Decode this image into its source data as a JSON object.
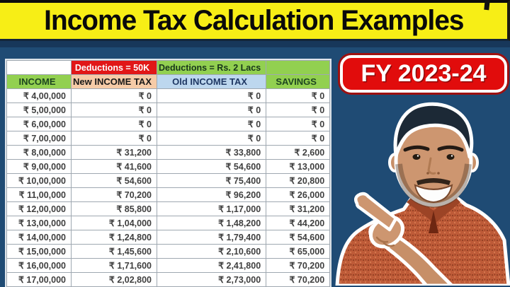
{
  "banner": {
    "title": "Income Tax Calculation Examples"
  },
  "badge": {
    "label": "FY 2023-24"
  },
  "colors": {
    "background": "#1F4B74",
    "banner_yellow": "#F7EE16",
    "badge_red": "#E10C0C",
    "deduction_red": "#E11717",
    "header_green": "#92D050",
    "header_peach": "#F6CBA7",
    "header_blue": "#BDD7EE"
  },
  "chart_data": {
    "type": "table",
    "title": "Income Tax Calculation Examples",
    "fiscal_year": "FY 2023-24",
    "group_headers": [
      "",
      "Deductions = 50K",
      "Deductions = Rs. 2 Lacs",
      ""
    ],
    "columns": [
      "INCOME",
      "New INCOME TAX",
      "Old INCOME TAX",
      "SAVINGS"
    ],
    "rows": [
      [
        "₹ 4,00,000",
        "₹ 0",
        "₹ 0",
        "₹ 0"
      ],
      [
        "₹ 5,00,000",
        "₹ 0",
        "₹ 0",
        "₹ 0"
      ],
      [
        "₹ 6,00,000",
        "₹ 0",
        "₹ 0",
        "₹ 0"
      ],
      [
        "₹ 7,00,000",
        "₹ 0",
        "₹ 0",
        "₹ 0"
      ],
      [
        "₹ 8,00,000",
        "₹ 31,200",
        "₹ 33,800",
        "₹ 2,600"
      ],
      [
        "₹ 9,00,000",
        "₹ 41,600",
        "₹ 54,600",
        "₹ 13,000"
      ],
      [
        "₹ 10,00,000",
        "₹ 54,600",
        "₹ 75,400",
        "₹ 20,800"
      ],
      [
        "₹ 11,00,000",
        "₹ 70,200",
        "₹ 96,200",
        "₹ 26,000"
      ],
      [
        "₹ 12,00,000",
        "₹ 85,800",
        "₹ 1,17,000",
        "₹ 31,200"
      ],
      [
        "₹ 13,00,000",
        "₹ 1,04,000",
        "₹ 1,48,200",
        "₹ 44,200"
      ],
      [
        "₹ 14,00,000",
        "₹ 1,24,800",
        "₹ 1,79,400",
        "₹ 54,600"
      ],
      [
        "₹ 15,00,000",
        "₹ 1,45,600",
        "₹ 2,10,600",
        "₹ 65,000"
      ],
      [
        "₹ 16,00,000",
        "₹ 1,71,600",
        "₹ 2,41,800",
        "₹ 70,200"
      ],
      [
        "₹ 17,00,000",
        "₹ 2,02,800",
        "₹ 2,73,000",
        "₹ 70,200"
      ]
    ]
  }
}
